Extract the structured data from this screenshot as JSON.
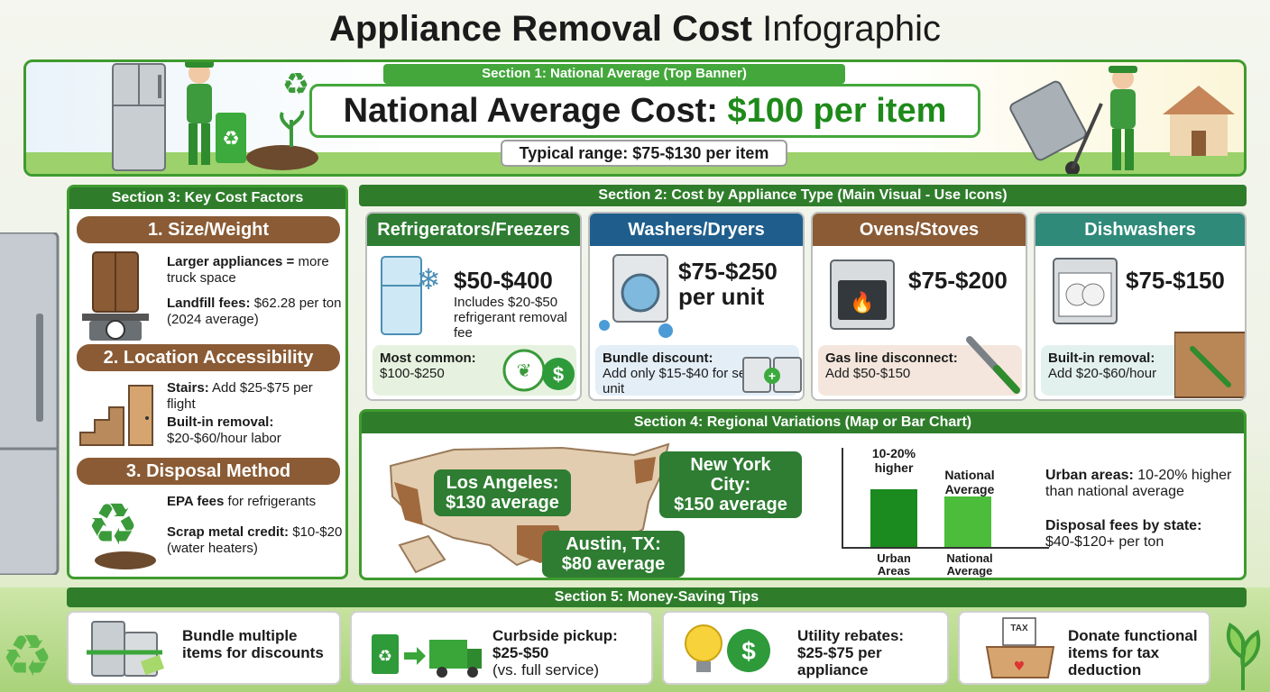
{
  "title": {
    "bold": "Appliance Removal Cost",
    "normal": "Infographic"
  },
  "banner": {
    "section_label": "Section 1: National Average (Top Banner)",
    "national_prefix": "National Average Cost:",
    "national_value": "$100 per item",
    "typical_range": "Typical range: $75-$130 per item"
  },
  "factors": {
    "section_label": "Section 3: Key Cost Factors",
    "items": [
      {
        "heading": "1. Size/Weight",
        "lines": [
          {
            "bold": "Larger appliances =",
            "text": "more truck space"
          },
          {
            "bold": "Landfill fees:",
            "text": "$62.28 per ton (2024 average)"
          }
        ]
      },
      {
        "heading": "2. Location Accessibility",
        "lines": [
          {
            "bold": "Stairs:",
            "text": "Add $25-$75 per flight"
          },
          {
            "bold": "Built-in removal:",
            "text": "$20-$60/hour labor"
          }
        ]
      },
      {
        "heading": "3. Disposal Method",
        "lines": [
          {
            "bold": "EPA fees",
            "text": "for refrigerants"
          },
          {
            "bold": "Scrap metal credit:",
            "text": "$10-$20 (water heaters)"
          }
        ]
      }
    ]
  },
  "types": {
    "section_label": "Section 2: Cost by Appliance Type (Main Visual - Use Icons)",
    "cards": [
      {
        "name": "Refrigerators/Freezers",
        "price": "$50-$400",
        "sub": "Includes $20-$50 refrigerant removal fee",
        "tip_bold": "Most common:",
        "tip_text": "$100-$250",
        "badge": "Eco friendly"
      },
      {
        "name": "Washers/Dryers",
        "price": "$75-$250 per unit",
        "sub": "",
        "tip_bold": "Bundle discount:",
        "tip_text": "Add only $15-$40 for second unit"
      },
      {
        "name": "Ovens/Stoves",
        "price": "$75-$200",
        "sub": "",
        "tip_bold": "Gas line disconnect:",
        "tip_text": "Add $50-$150"
      },
      {
        "name": "Dishwashers",
        "price": "$75-$150",
        "sub": "",
        "tip_bold": "Built-in removal:",
        "tip_text": "Add $20-$60/hour"
      }
    ],
    "colors": {
      "refrigerators": "#2e7d32",
      "washers": "#1f5e8c",
      "ovens": "#8a5b35",
      "dishwashers": "#2f8a7a"
    }
  },
  "regional": {
    "section_label": "Section 4: Regional Variations (Map or Bar Chart)",
    "cities": [
      {
        "name": "New York City:",
        "avg": "$150 average"
      },
      {
        "name": "Los Angeles:",
        "avg": "$130 average"
      },
      {
        "name": "Austin, TX:",
        "avg": "$80 average"
      }
    ],
    "chart": {
      "bar1_label_top": "10-20% higher",
      "bar2_label_top": "National Average",
      "bar1_x": "Urban Areas",
      "bar2_x": "National Average"
    },
    "notes": [
      {
        "bold": "Urban areas:",
        "text": "10-20% higher than national average"
      },
      {
        "bold": "Disposal fees by state:",
        "text": "$40-$120+ per ton"
      }
    ]
  },
  "chart_data": {
    "type": "bar",
    "categories": [
      "Urban Areas",
      "National Average"
    ],
    "values": [
      115,
      100
    ],
    "annotations": [
      "10-20% higher",
      "National Average"
    ]
  },
  "tips": {
    "section_label": "Section 5: Money-Saving Tips",
    "items": [
      {
        "bold": "Bundle multiple items for discounts",
        "normal": ""
      },
      {
        "bold": "Curbside pickup: $25-$50",
        "normal": "(vs. full service)"
      },
      {
        "bold": "Utility rebates: $25-$75 per appliance",
        "normal": ""
      },
      {
        "bold": "Donate functional items for tax deduction",
        "normal": "",
        "icon_label": "TAX"
      }
    ]
  }
}
